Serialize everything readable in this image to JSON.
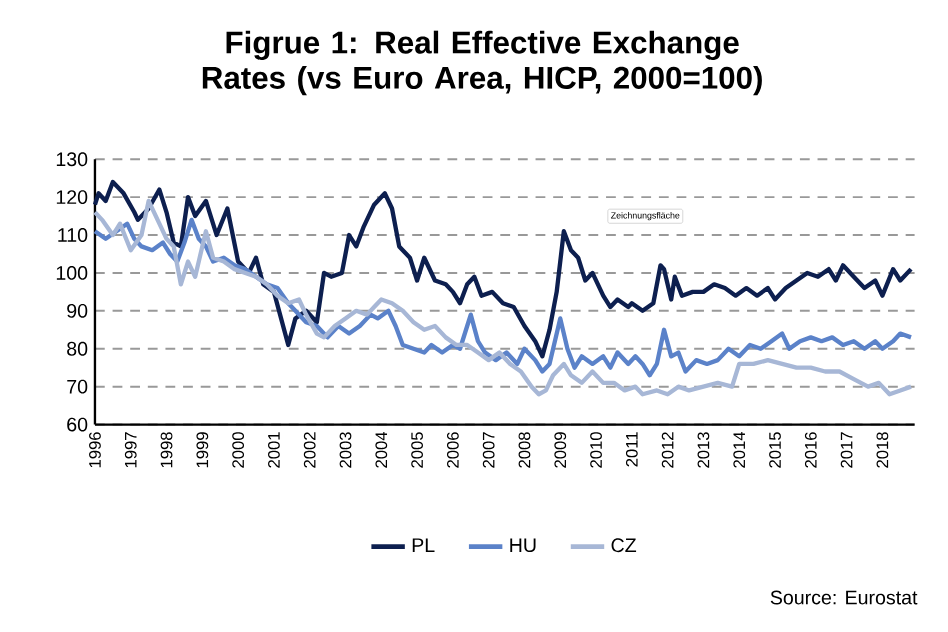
{
  "chart_data": {
    "type": "line",
    "title": "Figrue 1: Real Effective Exchange Rates (vs Euro Area, HICP, 2000=100)",
    "xlim": [
      1996,
      2018.9
    ],
    "xticks": [
      1996,
      1997,
      1998,
      1999,
      2000,
      2001,
      2002,
      2003,
      2004,
      2005,
      2006,
      2007,
      2008,
      2009,
      2010,
      2011,
      2012,
      2013,
      2014,
      2015,
      2016,
      2017,
      2018
    ],
    "ylim": [
      60,
      130
    ],
    "yticks": [
      60,
      70,
      80,
      90,
      100,
      110,
      120,
      130
    ],
    "grid": "y",
    "legend": "bottom",
    "annotations": [
      "Zeichnungsfläche",
      "Source: Eurostat"
    ],
    "series": [
      {
        "name": "PL",
        "color": "#0d1f4f",
        "x": [
          1996.0,
          1996.1,
          1996.3,
          1996.5,
          1996.8,
          1997.1,
          1997.2,
          1997.5,
          1997.8,
          1998.0,
          1998.2,
          1998.4,
          1998.6,
          1998.8,
          1999.1,
          1999.4,
          1999.7,
          2000.0,
          2000.3,
          2000.5,
          2000.7,
          2001.0,
          2001.2,
          2001.4,
          2001.6,
          2001.9,
          2002.2,
          2002.4,
          2002.6,
          2002.9,
          2003.1,
          2003.3,
          2003.5,
          2003.8,
          2004.1,
          2004.3,
          2004.5,
          2004.8,
          2005.0,
          2005.2,
          2005.5,
          2005.8,
          2006.0,
          2006.2,
          2006.4,
          2006.6,
          2006.8,
          2007.1,
          2007.4,
          2007.7,
          2008.0,
          2008.3,
          2008.5,
          2008.7,
          2008.9,
          2009.1,
          2009.3,
          2009.5,
          2009.7,
          2009.9,
          2010.2,
          2010.4,
          2010.6,
          2010.9,
          2011.0,
          2011.3,
          2011.6,
          2011.8,
          2011.9,
          2012.1,
          2012.2,
          2012.4,
          2012.7,
          2013.0,
          2013.3,
          2013.6,
          2013.9,
          2014.2,
          2014.5,
          2014.8,
          2015.0,
          2015.3,
          2015.6,
          2015.9,
          2016.2,
          2016.5,
          2016.7,
          2016.9,
          2017.2,
          2017.5,
          2017.8,
          2018.0,
          2018.3,
          2018.5,
          2018.8
        ],
        "values": [
          118,
          121,
          119,
          124,
          121,
          116,
          114,
          117,
          122,
          116,
          108,
          107,
          120,
          115,
          119,
          110,
          117,
          103,
          100,
          104,
          97,
          95,
          88,
          81,
          88,
          90,
          87,
          100,
          99,
          100,
          110,
          107,
          112,
          118,
          121,
          117,
          107,
          104,
          98,
          104,
          98,
          97,
          95,
          92,
          97,
          99,
          94,
          95,
          92,
          91,
          86,
          82,
          78,
          85,
          95,
          111,
          106,
          104,
          98,
          100,
          94,
          91,
          93,
          91,
          92,
          90,
          92,
          102,
          101,
          93,
          99,
          94,
          95,
          95,
          97,
          96,
          94,
          96,
          94,
          96,
          93,
          96,
          98,
          100,
          99,
          101,
          98,
          102,
          99,
          96,
          98,
          94,
          101,
          98,
          101
        ]
      },
      {
        "name": "HU",
        "color": "#5b82c9",
        "x": [
          1996.0,
          1996.3,
          1996.6,
          1996.9,
          1997.1,
          1997.3,
          1997.6,
          1997.9,
          1998.1,
          1998.3,
          1998.5,
          1998.7,
          1998.9,
          1999.1,
          1999.3,
          1999.6,
          1999.9,
          2000.2,
          2000.5,
          2000.8,
          2001.1,
          2001.4,
          2001.6,
          2001.9,
          2002.2,
          2002.5,
          2002.8,
          2003.1,
          2003.4,
          2003.7,
          2003.9,
          2004.2,
          2004.4,
          2004.6,
          2004.9,
          2005.2,
          2005.4,
          2005.7,
          2006.0,
          2006.2,
          2006.4,
          2006.5,
          2006.7,
          2006.9,
          2007.2,
          2007.5,
          2007.8,
          2008.0,
          2008.3,
          2008.5,
          2008.7,
          2008.9,
          2009.0,
          2009.2,
          2009.4,
          2009.6,
          2009.9,
          2010.2,
          2010.4,
          2010.6,
          2010.9,
          2011.1,
          2011.3,
          2011.5,
          2011.7,
          2011.9,
          2012.1,
          2012.3,
          2012.5,
          2012.8,
          2013.1,
          2013.4,
          2013.7,
          2014.0,
          2014.3,
          2014.6,
          2014.9,
          2015.2,
          2015.4,
          2015.7,
          2016.0,
          2016.3,
          2016.6,
          2016.9,
          2017.2,
          2017.5,
          2017.8,
          2018.0,
          2018.3,
          2018.5,
          2018.8
        ],
        "values": [
          111,
          109,
          111,
          113,
          109,
          107,
          106,
          108,
          105,
          103,
          108,
          114,
          109,
          107,
          103,
          104,
          102,
          101,
          99,
          97,
          96,
          92,
          90,
          87,
          86,
          83,
          86,
          84,
          86,
          89,
          88,
          90,
          86,
          81,
          80,
          79,
          81,
          79,
          81,
          80,
          86,
          89,
          82,
          79,
          77,
          79,
          76,
          80,
          77,
          74,
          76,
          84,
          88,
          80,
          75,
          78,
          76,
          78,
          75,
          79,
          76,
          78,
          76,
          73,
          76,
          85,
          78,
          79,
          74,
          77,
          76,
          77,
          80,
          78,
          81,
          80,
          82,
          84,
          80,
          82,
          83,
          82,
          83,
          81,
          82,
          80,
          82,
          80,
          82,
          84,
          83
        ]
      },
      {
        "name": "CZ",
        "color": "#a7b7d6",
        "x": [
          1996.0,
          1996.2,
          1996.5,
          1996.7,
          1997.0,
          1997.3,
          1997.5,
          1997.8,
          1998.0,
          1998.2,
          1998.4,
          1998.6,
          1998.8,
          1999.1,
          1999.3,
          1999.6,
          1999.9,
          2000.2,
          2000.5,
          2000.8,
          2001.1,
          2001.4,
          2001.7,
          2001.9,
          2002.2,
          2002.4,
          2002.7,
          2003.0,
          2003.3,
          2003.6,
          2003.8,
          2004.0,
          2004.3,
          2004.6,
          2004.9,
          2005.2,
          2005.5,
          2005.8,
          2006.1,
          2006.4,
          2006.7,
          2007.0,
          2007.3,
          2007.6,
          2007.9,
          2008.2,
          2008.4,
          2008.6,
          2008.8,
          2009.1,
          2009.3,
          2009.6,
          2009.9,
          2010.2,
          2010.5,
          2010.8,
          2011.1,
          2011.3,
          2011.7,
          2012.0,
          2012.3,
          2012.6,
          2013.0,
          2013.4,
          2013.8,
          2014.0,
          2014.4,
          2014.8,
          2015.2,
          2015.6,
          2016.0,
          2016.4,
          2016.8,
          2017.2,
          2017.6,
          2017.9,
          2018.2,
          2018.5,
          2018.8
        ],
        "values": [
          116,
          114,
          110,
          113,
          106,
          110,
          119,
          113,
          109,
          107,
          97,
          103,
          99,
          111,
          104,
          103,
          101,
          100,
          99,
          97,
          94,
          92,
          93,
          89,
          84,
          83,
          86,
          88,
          90,
          89,
          91,
          93,
          92,
          90,
          87,
          85,
          86,
          83,
          81,
          81,
          79,
          77,
          79,
          76,
          74,
          70,
          68,
          69,
          73,
          76,
          73,
          71,
          74,
          71,
          71,
          69,
          70,
          68,
          69,
          68,
          70,
          69,
          70,
          71,
          70,
          76,
          76,
          77,
          76,
          75,
          75,
          74,
          74,
          72,
          70,
          71,
          68,
          69,
          70
        ]
      }
    ]
  }
}
